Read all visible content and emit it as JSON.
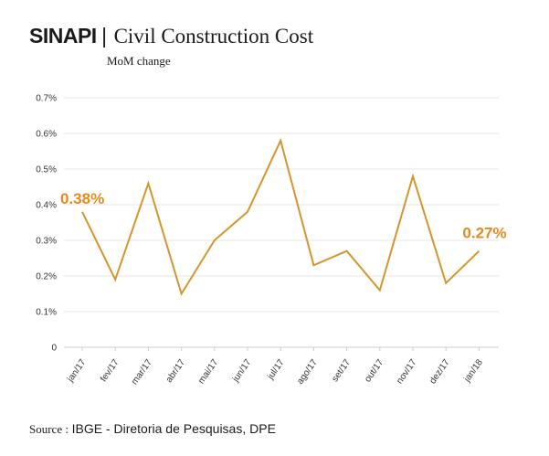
{
  "header": {
    "brand": "SINAPI",
    "separator": "|",
    "title": "Civil Construction Cost",
    "subtitle": "MoM change"
  },
  "source": {
    "label": "Source :",
    "text": "IBGE - Diretoria de Pesquisas, DPE"
  },
  "colors": {
    "line": "#d4952a",
    "callout": "#e58a1f",
    "grid": "#e6e6e6",
    "text": "#1a1a1a"
  },
  "chart_data": {
    "type": "line",
    "title": "Civil Construction Cost",
    "subtitle": "MoM change",
    "xlabel": "",
    "ylabel": "",
    "categories": [
      "jan/17",
      "fev/17",
      "mar/17",
      "abr/17",
      "mai/17",
      "jun/17",
      "jul/17",
      "ago/17",
      "set/17",
      "out/17",
      "nov/17",
      "dez/17",
      "jan/18"
    ],
    "series": [
      {
        "values": [
          0.38,
          0.19,
          0.46,
          0.15,
          0.3,
          0.38,
          0.58,
          0.23,
          0.27,
          0.16,
          0.48,
          0.18,
          0.27
        ]
      }
    ],
    "ylim": [
      0,
      0.7
    ],
    "yticks": [
      0,
      0.1,
      0.2,
      0.3,
      0.4,
      0.5,
      0.6,
      0.7
    ],
    "ytick_labels": [
      "0",
      "0.1%",
      "0.2%",
      "0.3%",
      "0.4%",
      "0.5%",
      "0.6%",
      "0.7%"
    ],
    "grid": true,
    "annotations": [
      {
        "category": "jan/17",
        "text": "0.38%"
      },
      {
        "category": "jan/18",
        "text": "0.27%"
      }
    ]
  }
}
